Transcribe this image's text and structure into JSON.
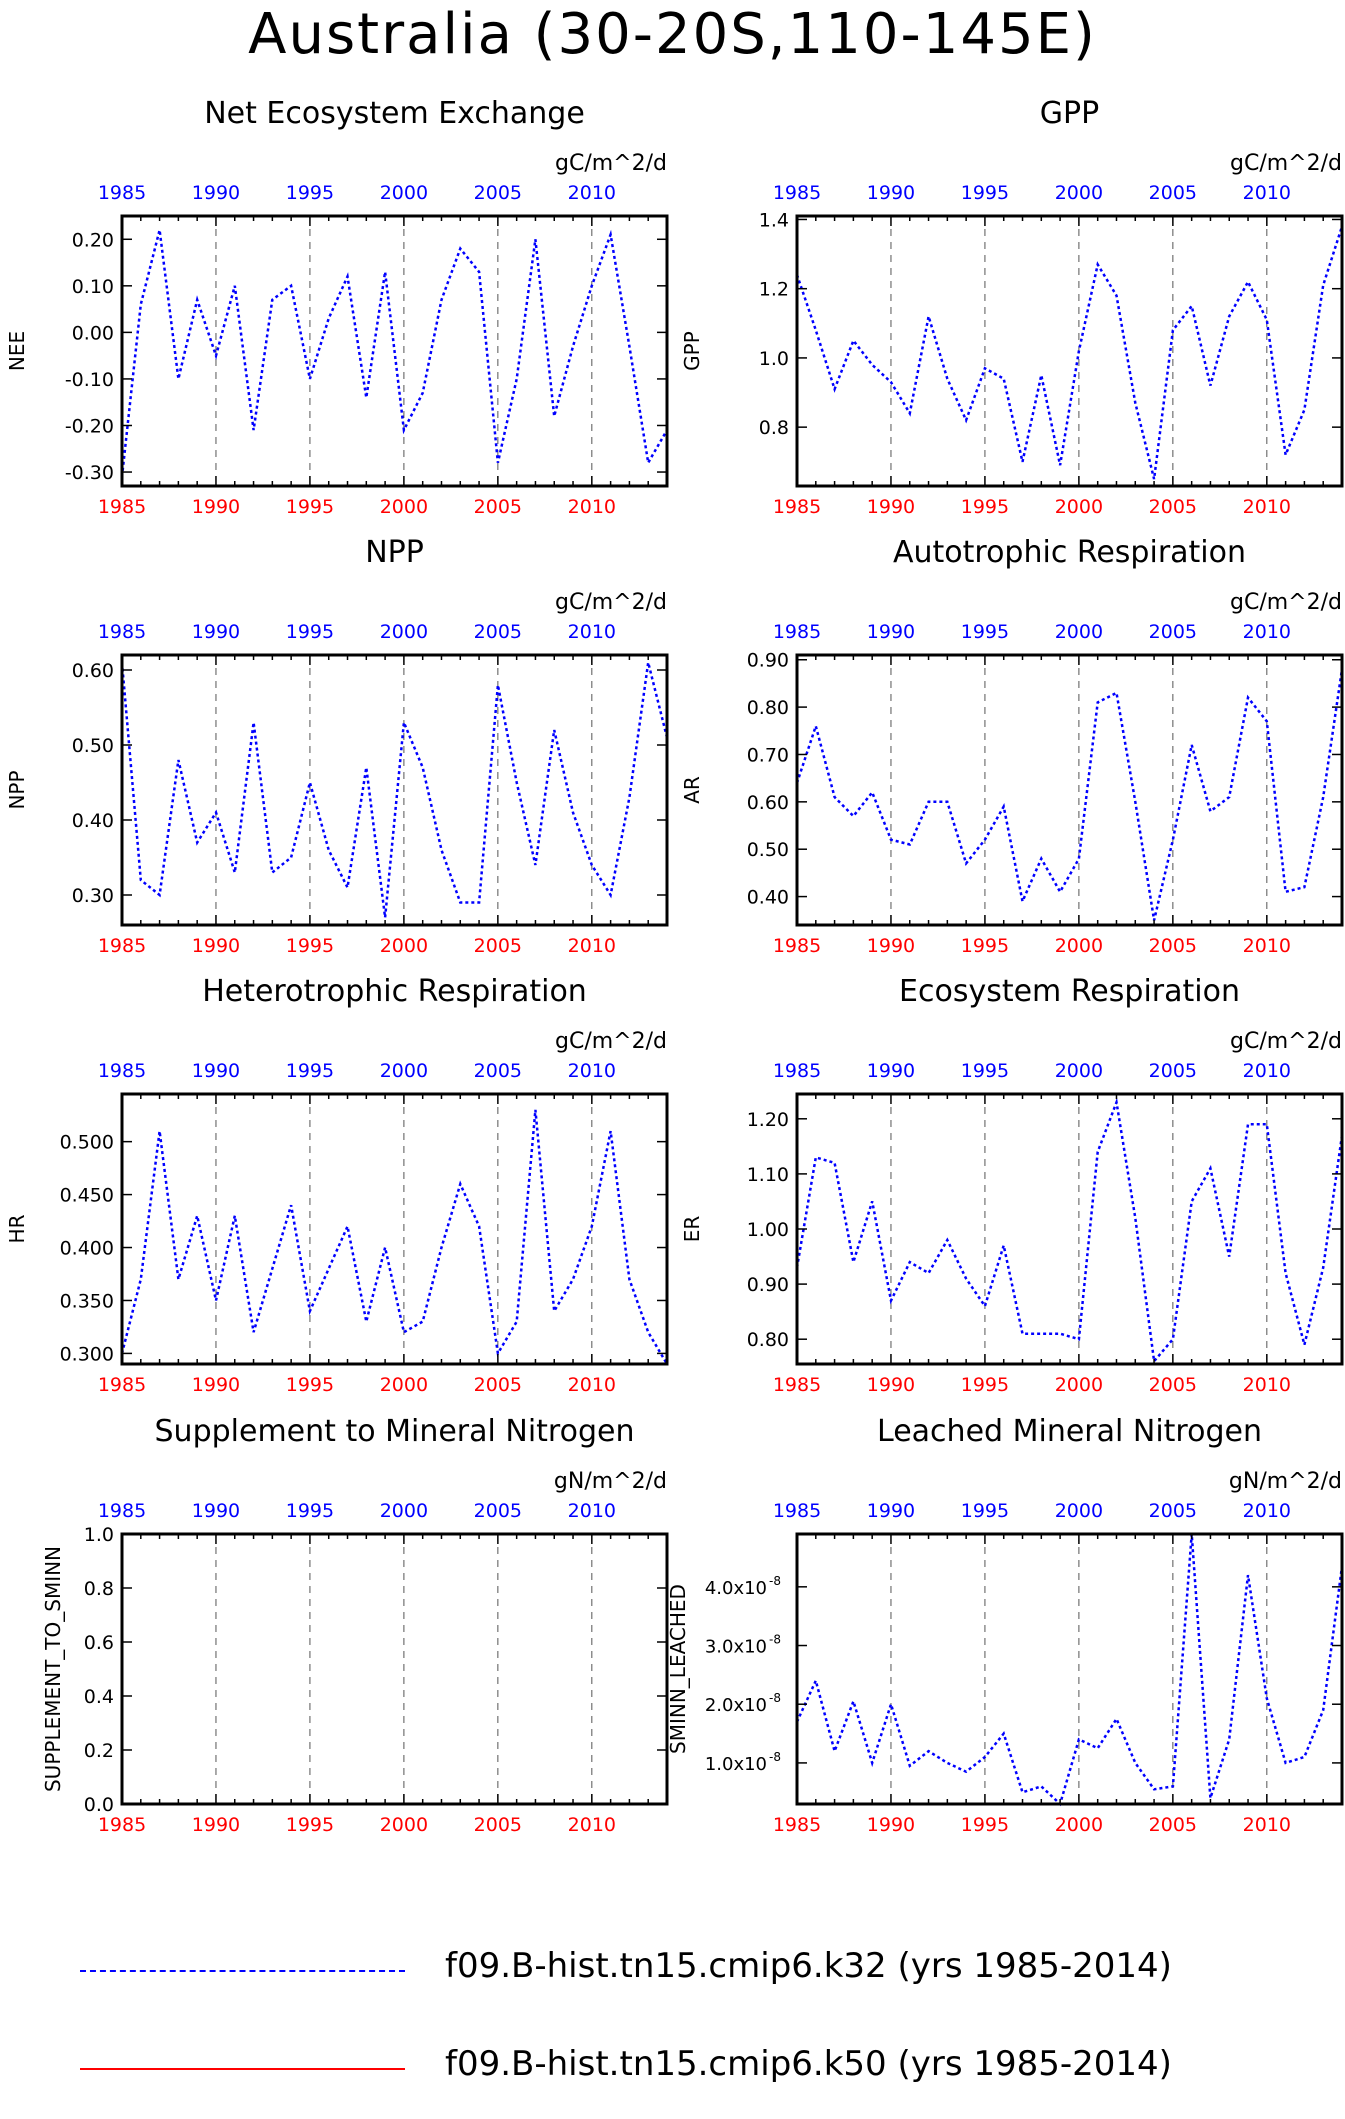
{
  "title": "Australia (30-20S,110-145E)",
  "legend": [
    {
      "label": "f09.B-hist.tn15.cmip6.k32 (yrs 1985-2014)",
      "color": "#0000ff",
      "style": "dashed"
    },
    {
      "label": "f09.B-hist.tn15.cmip6.k50 (yrs 1985-2014)",
      "color": "#ff0000",
      "style": "solid"
    }
  ],
  "top_axis_color": "#0000ff",
  "bottom_axis_color": "#ff0000",
  "chart_data": [
    {
      "type": "line",
      "title": "Net Ecosystem Exchange",
      "units": "gC/m^2/d",
      "ylabel": "NEE",
      "xlim": [
        1985,
        2014
      ],
      "ylim": [
        -0.33,
        0.25
      ],
      "xticks": [
        1985,
        1990,
        1995,
        2000,
        2005,
        2010
      ],
      "yticks": [
        -0.3,
        -0.2,
        -0.1,
        0.0,
        0.1,
        0.2
      ],
      "yticklabels": [
        "-0.30",
        "-0.20",
        "-0.10",
        "0.00",
        "0.10",
        "0.20"
      ],
      "series": [
        {
          "color": "#0000ff",
          "x": [
            1985,
            1986,
            1987,
            1988,
            1989,
            1990,
            1991,
            1992,
            1993,
            1994,
            1995,
            1996,
            1997,
            1998,
            1999,
            2000,
            2001,
            2002,
            2003,
            2004,
            2005,
            2006,
            2007,
            2008,
            2009,
            2010,
            2011,
            2012,
            2013,
            2014
          ],
          "values": [
            -0.31,
            0.06,
            0.22,
            -0.1,
            0.07,
            -0.05,
            0.1,
            -0.21,
            0.07,
            0.1,
            -0.1,
            0.03,
            0.12,
            -0.14,
            0.13,
            -0.21,
            -0.13,
            0.07,
            0.18,
            0.13,
            -0.28,
            -0.1,
            0.2,
            -0.18,
            -0.03,
            0.1,
            0.21,
            -0.03,
            -0.28,
            -0.21
          ]
        }
      ]
    },
    {
      "type": "line",
      "title": "GPP",
      "units": "gC/m^2/d",
      "ylabel": "GPP",
      "xlim": [
        1985,
        2014
      ],
      "ylim": [
        0.63,
        1.41
      ],
      "xticks": [
        1985,
        1990,
        1995,
        2000,
        2005,
        2010
      ],
      "yticks": [
        0.8,
        1.0,
        1.2,
        1.4
      ],
      "yticklabels": [
        "0.8",
        "1.0",
        "1.2",
        "1.4"
      ],
      "series": [
        {
          "color": "#0000ff",
          "x": [
            1985,
            1986,
            1987,
            1988,
            1989,
            1990,
            1991,
            1992,
            1993,
            1994,
            1995,
            1996,
            1997,
            1998,
            1999,
            2000,
            2001,
            2002,
            2003,
            2004,
            2005,
            2006,
            2007,
            2008,
            2009,
            2010,
            2011,
            2012,
            2013,
            2014
          ],
          "values": [
            1.24,
            1.08,
            0.91,
            1.05,
            0.98,
            0.93,
            0.84,
            1.12,
            0.94,
            0.82,
            0.97,
            0.94,
            0.7,
            0.95,
            0.69,
            1.02,
            1.27,
            1.18,
            0.87,
            0.65,
            1.08,
            1.15,
            0.92,
            1.12,
            1.22,
            1.11,
            0.72,
            0.85,
            1.21,
            1.38
          ]
        }
      ]
    },
    {
      "type": "line",
      "title": "NPP",
      "units": "gC/m^2/d",
      "ylabel": "NPP",
      "xlim": [
        1985,
        2014
      ],
      "ylim": [
        0.26,
        0.62
      ],
      "xticks": [
        1985,
        1990,
        1995,
        2000,
        2005,
        2010
      ],
      "yticks": [
        0.3,
        0.4,
        0.5,
        0.6
      ],
      "yticklabels": [
        "0.30",
        "0.40",
        "0.50",
        "0.60"
      ],
      "series": [
        {
          "color": "#0000ff",
          "x": [
            1985,
            1986,
            1987,
            1988,
            1989,
            1990,
            1991,
            1992,
            1993,
            1994,
            1995,
            1996,
            1997,
            1998,
            1999,
            2000,
            2001,
            2002,
            2003,
            2004,
            2005,
            2006,
            2007,
            2008,
            2009,
            2010,
            2011,
            2012,
            2013,
            2014
          ],
          "values": [
            0.61,
            0.32,
            0.3,
            0.48,
            0.37,
            0.41,
            0.33,
            0.53,
            0.33,
            0.35,
            0.45,
            0.36,
            0.31,
            0.47,
            0.27,
            0.53,
            0.47,
            0.36,
            0.29,
            0.29,
            0.58,
            0.45,
            0.34,
            0.52,
            0.41,
            0.34,
            0.3,
            0.43,
            0.61,
            0.51
          ]
        }
      ]
    },
    {
      "type": "line",
      "title": "Autotrophic Respiration",
      "units": "gC/m^2/d",
      "ylabel": "AR",
      "xlim": [
        1985,
        2014
      ],
      "ylim": [
        0.34,
        0.91
      ],
      "xticks": [
        1985,
        1990,
        1995,
        2000,
        2005,
        2010
      ],
      "yticks": [
        0.4,
        0.5,
        0.6,
        0.7,
        0.8,
        0.9
      ],
      "yticklabels": [
        "0.40",
        "0.50",
        "0.60",
        "0.70",
        "0.80",
        "0.90"
      ],
      "series": [
        {
          "color": "#0000ff",
          "x": [
            1985,
            1986,
            1987,
            1988,
            1989,
            1990,
            1991,
            1992,
            1993,
            1994,
            1995,
            1996,
            1997,
            1998,
            1999,
            2000,
            2001,
            2002,
            2003,
            2004,
            2005,
            2006,
            2007,
            2008,
            2009,
            2010,
            2011,
            2012,
            2013,
            2014
          ],
          "values": [
            0.64,
            0.76,
            0.61,
            0.57,
            0.62,
            0.52,
            0.51,
            0.6,
            0.6,
            0.47,
            0.52,
            0.59,
            0.39,
            0.48,
            0.41,
            0.48,
            0.81,
            0.83,
            0.6,
            0.35,
            0.52,
            0.72,
            0.58,
            0.61,
            0.82,
            0.77,
            0.41,
            0.42,
            0.61,
            0.88
          ]
        }
      ]
    },
    {
      "type": "line",
      "title": "Heterotrophic Respiration",
      "units": "gC/m^2/d",
      "ylabel": "HR",
      "xlim": [
        1985,
        2014
      ],
      "ylim": [
        0.29,
        0.545
      ],
      "xticks": [
        1985,
        1990,
        1995,
        2000,
        2005,
        2010
      ],
      "yticks": [
        0.3,
        0.35,
        0.4,
        0.45,
        0.5
      ],
      "yticklabels": [
        "0.300",
        "0.350",
        "0.400",
        "0.450",
        "0.500"
      ],
      "series": [
        {
          "color": "#0000ff",
          "x": [
            1985,
            1986,
            1987,
            1988,
            1989,
            1990,
            1991,
            1992,
            1993,
            1994,
            1995,
            1996,
            1997,
            1998,
            1999,
            2000,
            2001,
            2002,
            2003,
            2004,
            2005,
            2006,
            2007,
            2008,
            2009,
            2010,
            2011,
            2012,
            2013,
            2014
          ],
          "values": [
            0.3,
            0.37,
            0.51,
            0.37,
            0.43,
            0.35,
            0.43,
            0.32,
            0.38,
            0.44,
            0.34,
            0.38,
            0.42,
            0.33,
            0.4,
            0.32,
            0.33,
            0.4,
            0.46,
            0.42,
            0.3,
            0.33,
            0.53,
            0.34,
            0.37,
            0.42,
            0.51,
            0.37,
            0.32,
            0.29
          ]
        }
      ]
    },
    {
      "type": "line",
      "title": "Ecosystem Respiration",
      "units": "gC/m^2/d",
      "ylabel": "ER",
      "xlim": [
        1985,
        2014
      ],
      "ylim": [
        0.755,
        1.245
      ],
      "xticks": [
        1985,
        1990,
        1995,
        2000,
        2005,
        2010
      ],
      "yticks": [
        0.8,
        0.9,
        1.0,
        1.1,
        1.2
      ],
      "yticklabels": [
        "0.80",
        "0.90",
        "1.00",
        "1.10",
        "1.20"
      ],
      "series": [
        {
          "color": "#0000ff",
          "x": [
            1985,
            1986,
            1987,
            1988,
            1989,
            1990,
            1991,
            1992,
            1993,
            1994,
            1995,
            1996,
            1997,
            1998,
            1999,
            2000,
            2001,
            2002,
            2003,
            2004,
            2005,
            2006,
            2007,
            2008,
            2009,
            2010,
            2011,
            2012,
            2013,
            2014
          ],
          "values": [
            0.93,
            1.13,
            1.12,
            0.94,
            1.05,
            0.87,
            0.94,
            0.92,
            0.98,
            0.91,
            0.86,
            0.97,
            0.81,
            0.81,
            0.81,
            0.8,
            1.14,
            1.23,
            1.02,
            0.76,
            0.8,
            1.05,
            1.11,
            0.95,
            1.19,
            1.19,
            0.92,
            0.79,
            0.93,
            1.17
          ]
        }
      ]
    },
    {
      "type": "line",
      "title": "Supplement to Mineral Nitrogen",
      "units": "gN/m^2/d",
      "ylabel": "SUPPLEMENT_TO_SMINN",
      "xlim": [
        1985,
        2014
      ],
      "ylim": [
        0,
        1
      ],
      "xticks": [
        1985,
        1990,
        1995,
        2000,
        2005,
        2010
      ],
      "yticks": [
        0.0,
        0.2,
        0.4,
        0.6,
        0.8,
        1.0
      ],
      "yticklabels": [
        "0.0",
        "0.2",
        "0.4",
        "0.6",
        "0.8",
        "1.0"
      ],
      "series": []
    },
    {
      "type": "line",
      "title": "Leached Mineral Nitrogen",
      "units": "gN/m^2/d",
      "ylabel": "SMINN_LEACHED",
      "xlim": [
        1985,
        2014
      ],
      "ylim": [
        3e-09,
        4.9e-08
      ],
      "xticks": [
        1985,
        1990,
        1995,
        2000,
        2005,
        2010
      ],
      "yticks": [
        1e-08,
        2e-08,
        3e-08,
        4e-08
      ],
      "yticklabels": [
        "1.0x10",
        "2.0x10",
        "3.0x10",
        "4.0x10"
      ],
      "ytick_exponent": "-8",
      "series": [
        {
          "color": "#0000ff",
          "x": [
            1985,
            1986,
            1987,
            1988,
            1989,
            1990,
            1991,
            1992,
            1993,
            1994,
            1995,
            1996,
            1997,
            1998,
            1999,
            2000,
            2001,
            2002,
            2003,
            2004,
            2005,
            2006,
            2007,
            2008,
            2009,
            2010,
            2011,
            2012,
            2013,
            2014
          ],
          "values": [
            1.7e-08,
            2.4e-08,
            1.2e-08,
            2.05e-08,
            1e-08,
            2e-08,
            9.5e-09,
            1.2e-08,
            1e-08,
            8.5e-09,
            1.1e-08,
            1.5e-08,
            5e-09,
            6e-09,
            3e-09,
            1.4e-08,
            1.25e-08,
            1.75e-08,
            1e-08,
            5.5e-09,
            6e-09,
            4.9e-08,
            4e-09,
            1.4e-08,
            4.2e-08,
            2.1e-08,
            1e-08,
            1.1e-08,
            1.9e-08,
            4.35e-08
          ]
        }
      ]
    }
  ]
}
